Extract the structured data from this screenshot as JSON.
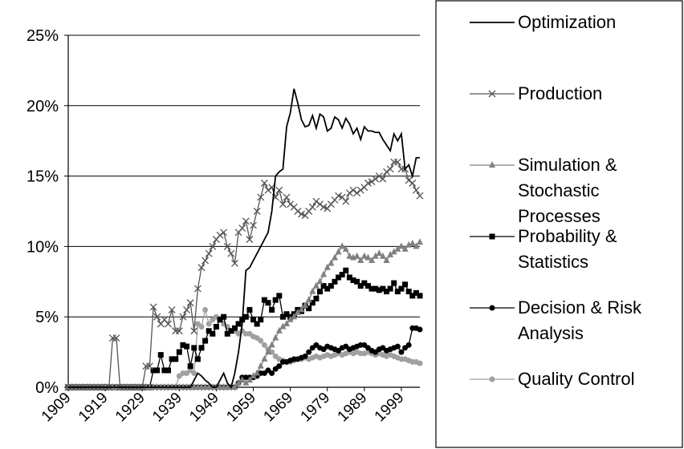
{
  "chart_data": {
    "type": "line",
    "x": [
      1909,
      1910,
      1911,
      1912,
      1913,
      1914,
      1915,
      1916,
      1917,
      1918,
      1919,
      1920,
      1921,
      1922,
      1923,
      1924,
      1925,
      1926,
      1927,
      1928,
      1929,
      1930,
      1931,
      1932,
      1933,
      1934,
      1935,
      1936,
      1937,
      1938,
      1939,
      1940,
      1941,
      1942,
      1943,
      1944,
      1945,
      1946,
      1947,
      1948,
      1949,
      1950,
      1951,
      1952,
      1953,
      1954,
      1955,
      1956,
      1957,
      1958,
      1959,
      1960,
      1961,
      1962,
      1963,
      1964,
      1965,
      1966,
      1967,
      1968,
      1969,
      1970,
      1971,
      1972,
      1973,
      1974,
      1975,
      1976,
      1977,
      1978,
      1979,
      1980,
      1981,
      1982,
      1983,
      1984,
      1985,
      1986,
      1987,
      1988,
      1989,
      1990,
      1991,
      1992,
      1993,
      1994,
      1995,
      1996,
      1997,
      1998,
      1999,
      2000,
      2001,
      2002,
      2003,
      2004
    ],
    "xlim": [
      1909,
      2004
    ],
    "xticks": [
      1909,
      1919,
      1929,
      1939,
      1949,
      1959,
      1969,
      1979,
      1989,
      1999
    ],
    "ylim": [
      0,
      25
    ],
    "yticks": [
      {
        "value": 0,
        "label": "0%"
      },
      {
        "value": 5,
        "label": "5%"
      },
      {
        "value": 10,
        "label": "10%"
      },
      {
        "value": 15,
        "label": "15%"
      },
      {
        "value": 20,
        "label": "20%"
      },
      {
        "value": 25,
        "label": "25%"
      }
    ],
    "grid": true,
    "series": [
      {
        "name": "Optimization",
        "color": "#000000",
        "marker": "none",
        "values": [
          0,
          0,
          0,
          0,
          0,
          0,
          0,
          0,
          0,
          0,
          0,
          0,
          0,
          0,
          0,
          0,
          0,
          0,
          0,
          0,
          0,
          0,
          0,
          0,
          0,
          0,
          0,
          0,
          0,
          0,
          0,
          0,
          0,
          0,
          0.5,
          1,
          0.8,
          0.5,
          0.3,
          0,
          0,
          0.5,
          1,
          0.3,
          0,
          1,
          2.5,
          4.5,
          8.3,
          8.5,
          9,
          9.5,
          10,
          10.5,
          11,
          12.5,
          15,
          15.3,
          15.5,
          18.5,
          19.5,
          21.2,
          20.2,
          19,
          18.5,
          18.6,
          19.3,
          18.4,
          19.4,
          19.2,
          18.2,
          18.4,
          19.2,
          19,
          18.4,
          19.1,
          18.7,
          18,
          18.4,
          17.6,
          18.5,
          18.2,
          18.2,
          18.1,
          18.1,
          17.6,
          17.2,
          16.8,
          18,
          17.5,
          18,
          15.5,
          15.8,
          15,
          16.3,
          16.3
        ]
      },
      {
        "name": "Production",
        "color": "#555555",
        "marker": "cross",
        "values": [
          0,
          0,
          0,
          0,
          0,
          0,
          0,
          0,
          0,
          0,
          0,
          0,
          3.5,
          3.5,
          0,
          0,
          0,
          0,
          0,
          0,
          0,
          1.5,
          1.5,
          5.7,
          5,
          4.5,
          4.8,
          4.5,
          5.5,
          4,
          4,
          5,
          5.5,
          6,
          4,
          7,
          8.5,
          9,
          9.5,
          10,
          10.5,
          10.8,
          11,
          10,
          9.5,
          8.8,
          11,
          11.3,
          11.8,
          10.5,
          11.5,
          12.5,
          13.5,
          14.5,
          14,
          14.2,
          13.5,
          14,
          13,
          13.5,
          13,
          12.8,
          12.5,
          12.3,
          12.2,
          12.5,
          12.8,
          13.2,
          13,
          12.8,
          12.7,
          13,
          13.3,
          13.6,
          13.5,
          13.2,
          13.8,
          14,
          13.8,
          14,
          14.2,
          14.5,
          14.6,
          14.8,
          15,
          14.8,
          15.3,
          15.5,
          16,
          16,
          15.5,
          15.5,
          14.7,
          14.5,
          14,
          13.6
        ]
      },
      {
        "name": "Simulation & Stochastic Processes",
        "color": "#808080",
        "marker": "triangle",
        "values": [
          0,
          0,
          0,
          0,
          0,
          0,
          0,
          0,
          0,
          0,
          0,
          0,
          0,
          0,
          0,
          0,
          0,
          0,
          0,
          0,
          0,
          0,
          0,
          0,
          0,
          0,
          0,
          0,
          0,
          0,
          0,
          0,
          0,
          0,
          0,
          0,
          0,
          0,
          0,
          0,
          0,
          0,
          0,
          0,
          0,
          0,
          0.3,
          0.5,
          0.3,
          0.5,
          0.8,
          1,
          1.5,
          2,
          2.5,
          3,
          3.5,
          4,
          4.3,
          4.5,
          4.8,
          5,
          5.3,
          5.5,
          5.8,
          6.2,
          6.8,
          7.2,
          7.5,
          8,
          8.5,
          8.8,
          9.2,
          9.6,
          10,
          9.8,
          9.3,
          9.2,
          9.3,
          9,
          9.3,
          9.2,
          9,
          9.3,
          9.5,
          9.3,
          9,
          9.4,
          9.6,
          9.8,
          10,
          9.8,
          10.1,
          10.2,
          10,
          10.3
        ]
      },
      {
        "name": "Probability & Statistics",
        "color": "#000000",
        "marker": "square",
        "values": [
          0,
          0,
          0,
          0,
          0,
          0,
          0,
          0,
          0,
          0,
          0,
          0,
          0,
          0,
          0,
          0,
          0,
          0,
          0,
          0,
          0,
          0,
          0,
          1.2,
          1.2,
          2.3,
          1.2,
          1.2,
          2,
          2,
          2.5,
          3,
          2.9,
          1.5,
          2.8,
          2,
          2.8,
          3.3,
          4,
          3.8,
          4.3,
          4.8,
          5,
          3.8,
          4,
          4.2,
          4.5,
          4.8,
          5,
          5.5,
          4.8,
          4.5,
          4.8,
          6.2,
          6,
          5.5,
          6.2,
          6.5,
          5,
          5.2,
          5,
          5.2,
          5.5,
          5.4,
          5.8,
          5.6,
          6,
          6.3,
          6.8,
          7.2,
          7,
          7.2,
          7.5,
          7.8,
          8,
          8.3,
          7.8,
          7.6,
          7.5,
          7.2,
          7.4,
          7.2,
          7,
          7,
          6.9,
          7,
          6.8,
          7,
          7.4,
          6.8,
          7,
          7.3,
          6.8,
          6.5,
          6.7,
          6.5
        ]
      },
      {
        "name": "Decision & Risk Analysis",
        "color": "#000000",
        "marker": "circle",
        "values": [
          0,
          0,
          0,
          0,
          0,
          0,
          0,
          0,
          0,
          0,
          0,
          0,
          0,
          0,
          0,
          0,
          0,
          0,
          0,
          0,
          0,
          0,
          0,
          0,
          0,
          0,
          0,
          0,
          0,
          0,
          0,
          0,
          0,
          0,
          0,
          0,
          0,
          0,
          0,
          0,
          0,
          0,
          0,
          0,
          0,
          0,
          0.3,
          0.7,
          0.7,
          0.7,
          0.7,
          0.8,
          1,
          1,
          1.2,
          1,
          1.3,
          1.5,
          1.8,
          1.8,
          1.9,
          2,
          2,
          2.1,
          2.2,
          2.5,
          2.8,
          3,
          2.8,
          2.7,
          2.9,
          2.8,
          2.7,
          2.6,
          2.8,
          2.9,
          2.7,
          2.8,
          2.9,
          3,
          3,
          2.8,
          2.6,
          2.5,
          2.7,
          2.8,
          2.6,
          2.7,
          2.8,
          2.9,
          2.5,
          2.8,
          3,
          4.2,
          4.2,
          4.1
        ]
      },
      {
        "name": "Quality Control",
        "color": "#a0a0a0",
        "marker": "circle",
        "values": [
          0,
          0,
          0,
          0,
          0,
          0,
          0,
          0,
          0,
          0,
          0,
          0,
          0,
          0,
          0,
          0,
          0,
          0,
          0,
          0,
          0,
          0,
          0,
          0,
          0,
          0,
          0,
          0,
          0,
          0,
          0.8,
          1,
          1,
          1.2,
          1,
          4.5,
          4.3,
          5.5,
          4.5,
          4.8,
          5,
          4.8,
          4.5,
          4.3,
          4,
          4,
          3.8,
          4,
          3.8,
          3.8,
          3.6,
          3.5,
          3.3,
          3,
          2.7,
          2.5,
          2.2,
          2,
          1.9,
          1.8,
          1.8,
          1.9,
          2,
          2,
          2.1,
          2,
          2.1,
          2.2,
          2.1,
          2.2,
          2.3,
          2.2,
          2.3,
          2.4,
          2.3,
          2.4,
          2.5,
          2.4,
          2.5,
          2.4,
          2.4,
          2.5,
          2.4,
          2.3,
          2.4,
          2.3,
          2.2,
          2.3,
          2.2,
          2.1,
          2,
          2,
          1.9,
          1.8,
          1.8,
          1.7
        ]
      }
    ]
  }
}
